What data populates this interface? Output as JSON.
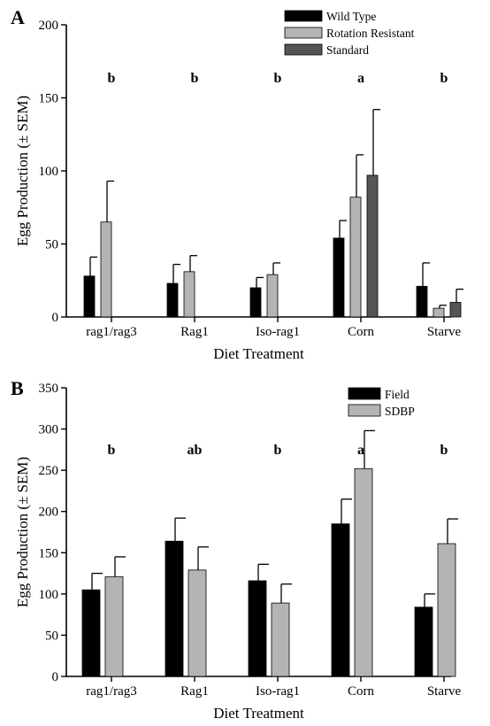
{
  "chart_data": [
    {
      "type": "bar",
      "panel_label": "A",
      "xlabel": "Diet Treatment",
      "ylabel": "Egg Production (± SEM)",
      "ylim": [
        0,
        200
      ],
      "yticks": [
        0,
        50,
        100,
        150,
        200
      ],
      "categories": [
        "rag1/rag3",
        "Rag1",
        "Iso-rag1",
        "Corn",
        "Starve"
      ],
      "significance_letters": [
        "b",
        "b",
        "b",
        "a",
        "b"
      ],
      "legend_position": "top-right",
      "series": [
        {
          "name": "Wild Type",
          "color": "#000000",
          "values": [
            28,
            23,
            20,
            54,
            21
          ],
          "sem": [
            13,
            13,
            7,
            12,
            16
          ]
        },
        {
          "name": "Rotation Resistant",
          "color": "#b4b4b4",
          "values": [
            65,
            31,
            29,
            82,
            6
          ],
          "sem": [
            28,
            11,
            8,
            29,
            2
          ]
        },
        {
          "name": "Standard",
          "color": "#555555",
          "values": [
            null,
            null,
            null,
            97,
            10
          ],
          "sem": [
            null,
            null,
            null,
            45,
            9
          ]
        }
      ]
    },
    {
      "type": "bar",
      "panel_label": "B",
      "xlabel": "Diet Treatment",
      "ylabel": "Egg Production (± SEM)",
      "ylim": [
        0,
        350
      ],
      "yticks": [
        0,
        50,
        100,
        150,
        200,
        250,
        300,
        350
      ],
      "categories": [
        "rag1/rag3",
        "Rag1",
        "Iso-rag1",
        "Corn",
        "Starve"
      ],
      "significance_letters": [
        "b",
        "ab",
        "b",
        "a",
        "b"
      ],
      "legend_position": "top-right",
      "series": [
        {
          "name": "Field",
          "color": "#000000",
          "values": [
            105,
            164,
            116,
            185,
            84
          ],
          "sem": [
            20,
            28,
            20,
            30,
            16
          ]
        },
        {
          "name": "SDBP",
          "color": "#b4b4b4",
          "values": [
            121,
            129,
            89,
            252,
            161
          ],
          "sem": [
            24,
            28,
            23,
            46,
            30
          ]
        }
      ]
    }
  ]
}
